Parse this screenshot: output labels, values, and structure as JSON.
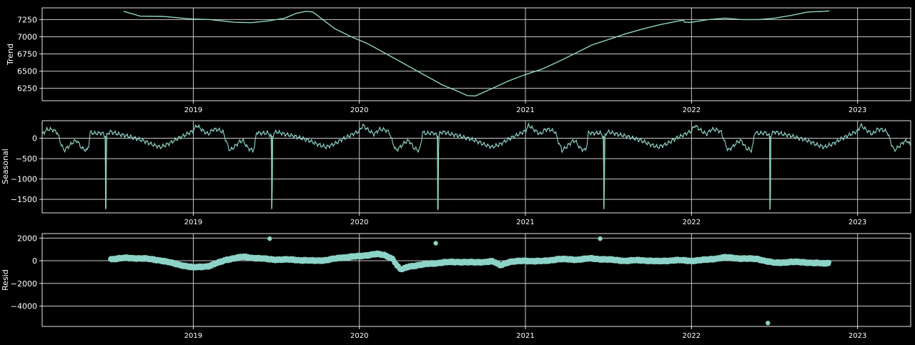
{
  "theme": {
    "background": "#000000",
    "axes_face": "#000000",
    "grid_color": "#c8c8c8",
    "spine_color": "#e6e6e6",
    "text_color": "#ffffff",
    "series_color": "#8dd3c7"
  },
  "chart_data": [
    {
      "type": "line",
      "ylabel": "Trend",
      "xlim": [
        2018.09,
        2023.32
      ],
      "ylim": [
        6070,
        7420
      ],
      "xticks": [
        2019,
        2020,
        2021,
        2022,
        2023
      ],
      "xtick_labels": [
        "2019",
        "2020",
        "2021",
        "2022",
        "2023"
      ],
      "yticks": [
        6250,
        6500,
        6750,
        7000,
        7250
      ],
      "ytick_labels": [
        "6250",
        "6500",
        "6750",
        "7000",
        "7250"
      ],
      "grid": true,
      "x": [
        2018.58,
        2018.68,
        2018.82,
        2018.98,
        2019.1,
        2019.25,
        2019.35,
        2019.45,
        2019.55,
        2019.62,
        2019.68,
        2019.72,
        2019.78,
        2019.85,
        2019.95,
        2020.05,
        2020.2,
        2020.35,
        2020.5,
        2020.6,
        2020.65,
        2020.7,
        2020.8,
        2020.9,
        2021.0,
        2021.1,
        2021.2,
        2021.3,
        2021.4,
        2021.5,
        2021.6,
        2021.7,
        2021.8,
        2021.9,
        2021.95,
        2021.96,
        2022.0,
        2022.1,
        2022.2,
        2022.3,
        2022.4,
        2022.5,
        2022.6,
        2022.7,
        2022.8,
        2022.83
      ],
      "values": [
        7370,
        7300,
        7295,
        7260,
        7250,
        7210,
        7205,
        7230,
        7270,
        7340,
        7370,
        7360,
        7250,
        7120,
        7000,
        6900,
        6700,
        6500,
        6300,
        6200,
        6145,
        6140,
        6250,
        6360,
        6450,
        6530,
        6640,
        6760,
        6880,
        6960,
        7040,
        7110,
        7170,
        7220,
        7240,
        7210,
        7210,
        7250,
        7270,
        7250,
        7250,
        7270,
        7310,
        7360,
        7370,
        7375
      ]
    },
    {
      "type": "line",
      "ylabel": "Seasonal",
      "xlim": [
        2018.09,
        2023.32
      ],
      "ylim": [
        -1830,
        430
      ],
      "xticks": [
        2019,
        2020,
        2021,
        2022,
        2023
      ],
      "xtick_labels": [
        "2019",
        "2020",
        "2021",
        "2022",
        "2023"
      ],
      "yticks": [
        -1500,
        -1000,
        -500,
        0
      ],
      "ytick_labels": [
        "−1500",
        "−1000",
        "−500",
        "0"
      ],
      "grid": true,
      "season_period_years": 1,
      "x": [
        0.0,
        0.02,
        0.04,
        0.06,
        0.09,
        0.12,
        0.15,
        0.18,
        0.2,
        0.22,
        0.25,
        0.28,
        0.3,
        0.33,
        0.36,
        0.37,
        0.38,
        0.4,
        0.45,
        0.47,
        0.472,
        0.475,
        0.478,
        0.485,
        0.5,
        0.55,
        0.6,
        0.65,
        0.7,
        0.75,
        0.8,
        0.85,
        0.9,
        0.95,
        1.0
      ],
      "values": [
        180,
        320,
        250,
        180,
        100,
        220,
        210,
        150,
        -100,
        -300,
        -200,
        -80,
        -60,
        -250,
        -300,
        -170,
        150,
        120,
        130,
        50,
        -1750,
        -1700,
        50,
        120,
        160,
        100,
        60,
        0,
        -60,
        -150,
        -220,
        -140,
        -20,
        80,
        180
      ]
    },
    {
      "type": "scatter",
      "ylabel": "Resid",
      "xlim": [
        2018.09,
        2023.32
      ],
      "ylim": [
        -5800,
        2400
      ],
      "xticks": [
        2019,
        2020,
        2021,
        2022,
        2023
      ],
      "xtick_labels": [
        "2019",
        "2020",
        "2021",
        "2022",
        "2023"
      ],
      "yticks": [
        -4000,
        -2000,
        0,
        2000
      ],
      "ytick_labels": [
        "−4000",
        "−2000",
        "0",
        "2000"
      ],
      "grid": true,
      "zero_line": true,
      "x": [
        2018.5,
        2018.6,
        2018.7,
        2018.8,
        2018.9,
        2019.0,
        2019.1,
        2019.2,
        2019.3,
        2019.4,
        2019.5,
        2019.6,
        2019.7,
        2019.8,
        2019.9,
        2020.0,
        2020.1,
        2020.15,
        2020.2,
        2020.22,
        2020.25,
        2020.3,
        2020.4,
        2020.5,
        2020.6,
        2020.7,
        2020.8,
        2020.85,
        2020.9,
        2021.0,
        2021.1,
        2021.2,
        2021.3,
        2021.4,
        2021.5,
        2021.6,
        2021.7,
        2021.8,
        2021.9,
        2022.0,
        2022.1,
        2022.2,
        2022.3,
        2022.4,
        2022.5,
        2022.6,
        2022.7,
        2022.8,
        2022.83
      ],
      "values": [
        150,
        250,
        200,
        50,
        -300,
        -600,
        -450,
        100,
        350,
        200,
        100,
        100,
        0,
        50,
        300,
        400,
        600,
        500,
        200,
        -300,
        -800,
        -500,
        -300,
        -150,
        -100,
        -150,
        -50,
        -400,
        -100,
        0,
        -50,
        150,
        100,
        200,
        100,
        0,
        50,
        -50,
        50,
        0,
        100,
        300,
        200,
        150,
        -200,
        -100,
        -150,
        -250,
        -150
      ],
      "outliers_x": [
        2019.46,
        2020.46,
        2021.45,
        2022.46
      ],
      "outliers_y": [
        1950,
        1550,
        1950,
        -5500
      ]
    }
  ]
}
